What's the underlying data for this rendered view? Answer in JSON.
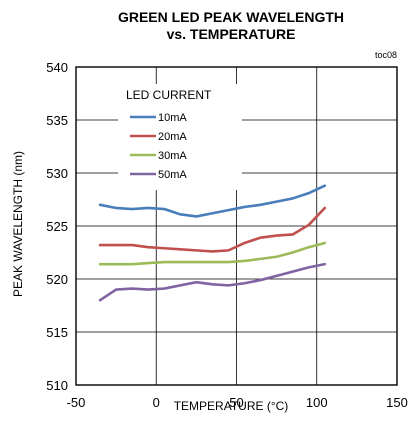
{
  "chart_data": {
    "type": "line",
    "title_lines": [
      "GREEN LED PEAK WAVELENGTH",
      "vs. TEMPERATURE"
    ],
    "figure_code": "toc08",
    "xlabel": "TEMPERATURE (°C)",
    "ylabel": "PEAK WAVELENGTH (nm)",
    "xlim": [
      -50,
      150
    ],
    "ylim": [
      510,
      540
    ],
    "xticks": [
      -50,
      0,
      50,
      100,
      150
    ],
    "yticks": [
      510,
      515,
      520,
      525,
      530,
      535,
      540
    ],
    "grid": true,
    "legend": {
      "title": "LED CURRENT",
      "placement": "top-left"
    },
    "series": [
      {
        "name": "10mA",
        "color": "#4a7ebb",
        "x": [
          -35,
          -25,
          -15,
          -5,
          5,
          15,
          25,
          35,
          45,
          55,
          65,
          75,
          85,
          95,
          105
        ],
        "y": [
          527.0,
          526.7,
          526.6,
          526.7,
          526.6,
          526.1,
          525.9,
          526.2,
          526.5,
          526.8,
          527.0,
          527.3,
          527.6,
          528.1,
          528.8
        ]
      },
      {
        "name": "20mA",
        "color": "#c0504d",
        "x": [
          -35,
          -25,
          -15,
          -5,
          5,
          15,
          25,
          35,
          45,
          55,
          65,
          75,
          85,
          95,
          105
        ],
        "y": [
          523.2,
          523.2,
          523.2,
          523.0,
          522.9,
          522.8,
          522.7,
          522.6,
          522.7,
          523.4,
          523.9,
          524.1,
          524.2,
          525.1,
          526.7
        ]
      },
      {
        "name": "30mA",
        "color": "#9bbb59",
        "x": [
          -35,
          -25,
          -15,
          -5,
          5,
          15,
          25,
          35,
          45,
          55,
          65,
          75,
          85,
          95,
          105
        ],
        "y": [
          521.4,
          521.4,
          521.4,
          521.5,
          521.6,
          521.6,
          521.6,
          521.6,
          521.6,
          521.7,
          521.9,
          522.1,
          522.5,
          523.0,
          523.4
        ]
      },
      {
        "name": "50mA",
        "color": "#8064a2",
        "x": [
          -35,
          -25,
          -15,
          -5,
          5,
          15,
          25,
          35,
          45,
          55,
          65,
          75,
          85,
          95,
          105
        ],
        "y": [
          518.0,
          519.0,
          519.1,
          519.0,
          519.1,
          519.4,
          519.7,
          519.5,
          519.4,
          519.6,
          519.9,
          520.3,
          520.7,
          521.1,
          521.4
        ]
      }
    ]
  }
}
